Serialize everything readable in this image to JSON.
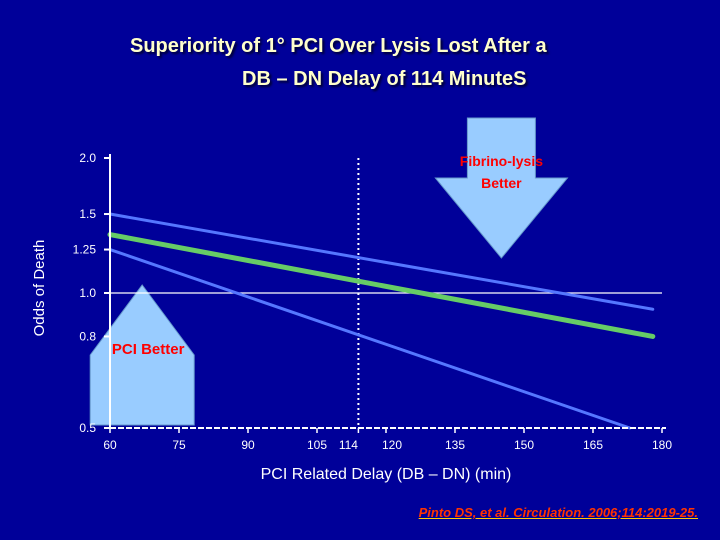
{
  "title_line1": "Superiority of 1° PCI Over Lysis Lost After a",
  "title_line2": "DB – DN Delay of 114 MinuteS",
  "citation": "Pinto DS, et al. Circulation. 2006;114:2019-25.",
  "colors": {
    "background": "#000099",
    "title": "#ffffcc",
    "axis_text": "#ffffff",
    "main_line": "#66cc66",
    "ci_lines": "#5577ff",
    "arrow_fill": "#99ccff",
    "callout_text": "#ff0000",
    "citation": "#ff3300"
  },
  "chart_data": {
    "type": "line",
    "xlabel": "PCI Related Delay (DB – DN) (min)",
    "ylabel": "Odds of Death",
    "y_scale": "log",
    "xlim": [
      60,
      180
    ],
    "ylim": [
      0.5,
      2.0
    ],
    "x_ticks": [
      {
        "value": 60,
        "label": "60"
      },
      {
        "value": 75,
        "label": "75"
      },
      {
        "value": 90,
        "label": "90"
      },
      {
        "value": 105,
        "label": "105"
      },
      {
        "value": 114,
        "label": "114"
      },
      {
        "value": 120,
        "label": "120"
      },
      {
        "value": 135,
        "label": "135"
      },
      {
        "value": 150,
        "label": "150"
      },
      {
        "value": 165,
        "label": "165"
      },
      {
        "value": 180,
        "label": "180"
      }
    ],
    "y_ticks": [
      {
        "value": 0.5,
        "label": "0.5"
      },
      {
        "value": 0.8,
        "label": "0.8"
      },
      {
        "value": 1.0,
        "label": "1.0"
      },
      {
        "value": 1.25,
        "label": "1.25"
      },
      {
        "value": 1.5,
        "label": "1.5"
      },
      {
        "value": 2.0,
        "label": "2.0"
      }
    ],
    "reference_line_y": 1.0,
    "reference_line_x": 114,
    "series": [
      {
        "role": "estimate",
        "x": [
          60,
          178
        ],
        "y": [
          1.35,
          0.8
        ]
      },
      {
        "role": "upper",
        "x": [
          60,
          178
        ],
        "y": [
          1.5,
          0.92
        ]
      },
      {
        "role": "lower",
        "x": [
          60,
          173
        ],
        "y": [
          1.25,
          0.5
        ]
      }
    ],
    "annotations": [
      {
        "text": "Fibrino-lysis Better",
        "direction": "down"
      },
      {
        "text": "PCI Better",
        "direction": "up"
      }
    ]
  }
}
